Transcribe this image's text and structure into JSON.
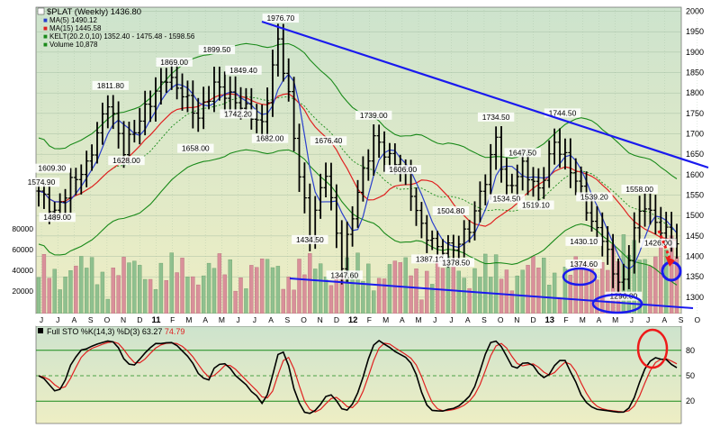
{
  "chart_data": {
    "type": "line",
    "ticker": "$PLAT (Weekly)",
    "last_price": "1436.80",
    "legend": [
      {
        "name": "$PLAT (Weekly)",
        "value": "1436.80",
        "color": "#000000"
      },
      {
        "name": "MA(5)",
        "value": "1490.12",
        "color": "#2a3fcc"
      },
      {
        "name": "MA(15)",
        "value": "1445.58",
        "color": "#e02020"
      },
      {
        "name": "KELT(20.2.0,10)",
        "value": "1352.40 - 1475.48 - 1598.56",
        "color": "#1a8a1a"
      },
      {
        "name": "Volume",
        "value": "10,878",
        "color": "#1a8a1a"
      }
    ],
    "y_axis": {
      "min": 1260,
      "max": 2010,
      "ticks": [
        1300,
        1350,
        1400,
        1450,
        1500,
        1550,
        1600,
        1650,
        1700,
        1750,
        1800,
        1850,
        1900,
        1950,
        2000
      ]
    },
    "volume_axis": {
      "ticks": [
        "20000",
        "40000",
        "60000",
        "80000"
      ]
    },
    "x_labels": [
      "J",
      "J",
      "A",
      "S",
      "O",
      "N",
      "D",
      "11",
      "F",
      "M",
      "A",
      "M",
      "J",
      "J",
      "A",
      "S",
      "O",
      "N",
      "D",
      "12",
      "F",
      "M",
      "A",
      "M",
      "J",
      "J",
      "A",
      "S",
      "O",
      "N",
      "D",
      "13",
      "F",
      "M",
      "A",
      "M",
      "J",
      "J",
      "A",
      "S",
      "O"
    ],
    "price_labels": [
      {
        "text": "1609.30",
        "week": 2.5,
        "price": 1609.3
      },
      {
        "text": "1574.90",
        "week": 0.5,
        "price": 1574.9
      },
      {
        "text": "1489.00",
        "week": 3.5,
        "price": 1489.0
      },
      {
        "text": "1811.80",
        "week": 13.5,
        "price": 1811.8
      },
      {
        "text": "1628.00",
        "week": 16.5,
        "price": 1628.0
      },
      {
        "text": "1869.00",
        "week": 25.5,
        "price": 1869.0
      },
      {
        "text": "1658.00",
        "week": 29.5,
        "price": 1658.0
      },
      {
        "text": "1899.50",
        "week": 33.5,
        "price": 1899.5
      },
      {
        "text": "1742.20",
        "week": 37.5,
        "price": 1742.2
      },
      {
        "text": "1849.40",
        "week": 38.5,
        "price": 1849.4
      },
      {
        "text": "1682.00",
        "week": 43.5,
        "price": 1682.0
      },
      {
        "text": "1976.70",
        "week": 45.5,
        "price": 1976.7
      },
      {
        "text": "1676.40",
        "week": 54.5,
        "price": 1676.4
      },
      {
        "text": "1434.50",
        "week": 51.0,
        "price": 1434.5
      },
      {
        "text": "1347.60",
        "week": 57.5,
        "price": 1347.6
      },
      {
        "text": "1739.00",
        "week": 63.0,
        "price": 1739.0
      },
      {
        "text": "1606.00",
        "week": 68.5,
        "price": 1606.0
      },
      {
        "text": "1504.80",
        "week": 77.5,
        "price": 1504.8
      },
      {
        "text": "1387.10",
        "week": 73.5,
        "price": 1387.1
      },
      {
        "text": "1378.50",
        "week": 78.5,
        "price": 1378.5
      },
      {
        "text": "1734.50",
        "week": 86.0,
        "price": 1734.5
      },
      {
        "text": "1647.50",
        "week": 91.0,
        "price": 1647.5
      },
      {
        "text": "1534.50",
        "week": 88.0,
        "price": 1534.5
      },
      {
        "text": "1744.50",
        "week": 98.5,
        "price": 1744.5
      },
      {
        "text": "1519.10",
        "week": 93.5,
        "price": 1519.1
      },
      {
        "text": "1539.20",
        "week": 104.5,
        "price": 1539.2
      },
      {
        "text": "1430.10",
        "week": 102.5,
        "price": 1430.1
      },
      {
        "text": "1374.60",
        "week": 102.5,
        "price": 1374.6
      },
      {
        "text": "1296.00",
        "week": 110.0,
        "price": 1296.0
      },
      {
        "text": "1558.00",
        "week": 113.0,
        "price": 1558.0
      },
      {
        "text": "1426.00",
        "week": 116.5,
        "price": 1426.0
      }
    ],
    "oscillator": {
      "title": "Full STO %K(14,3) %D(3) 63.27",
      "value_d": "74.79",
      "range": [
        0,
        100
      ],
      "ticks": [
        20,
        50,
        80
      ],
      "k_color": "#000000",
      "d_color": "#e02020"
    },
    "annotation_colors": {
      "trendline": "#1a1aee",
      "circle": "#1a1aee",
      "alert": "#ee1a1a"
    },
    "background": {
      "top": "#cde3cd",
      "bottom": "#eeeec4"
    }
  }
}
